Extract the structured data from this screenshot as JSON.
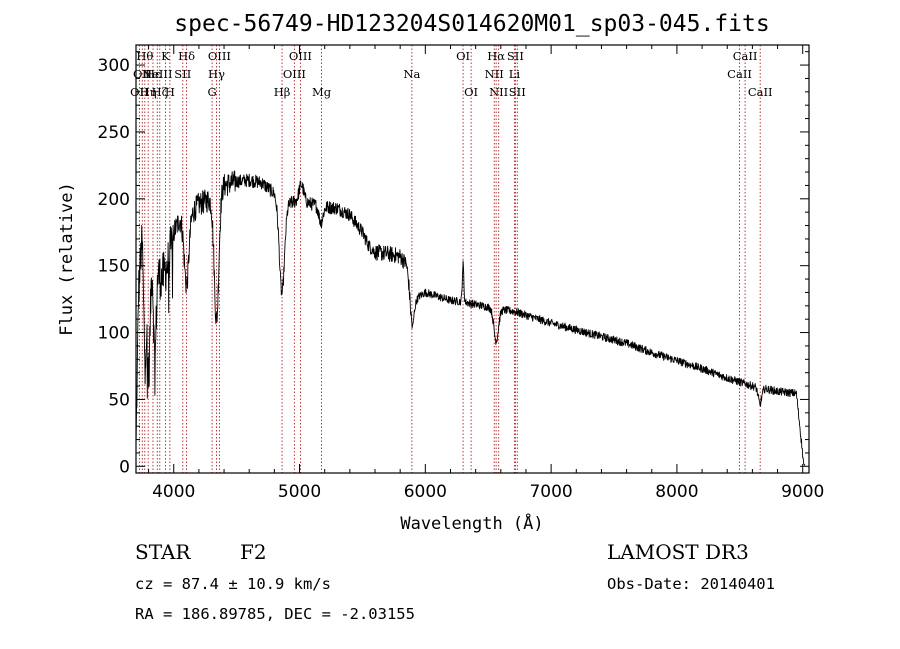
{
  "chart_data": {
    "type": "line",
    "title": "spec-56749-HD123204S014620M01_sp03-045.fits",
    "xlabel": "Wavelength (Å)",
    "ylabel": "Flux (relative)",
    "xlim": [
      3700,
      9050
    ],
    "ylim": [
      -5,
      315
    ],
    "xticks": [
      {
        "value": 4000,
        "label": "4000"
      },
      {
        "value": 5000,
        "label": "5000"
      },
      {
        "value": 6000,
        "label": "6000"
      },
      {
        "value": 7000,
        "label": "7000"
      },
      {
        "value": 8000,
        "label": "8000"
      },
      {
        "value": 9000,
        "label": "9000"
      }
    ],
    "yticks": [
      {
        "value": 0,
        "label": "0"
      },
      {
        "value": 50,
        "label": "50"
      },
      {
        "value": 100,
        "label": "100"
      },
      {
        "value": 150,
        "label": "150"
      },
      {
        "value": 200,
        "label": "200"
      },
      {
        "value": 250,
        "label": "250"
      },
      {
        "value": 300,
        "label": "300"
      }
    ],
    "spectrum_anchors": [
      [
        3700,
        10
      ],
      [
        3720,
        130
      ],
      [
        3750,
        175
      ],
      [
        3800,
        160
      ],
      [
        3850,
        150
      ],
      [
        3900,
        140
      ],
      [
        3950,
        150
      ],
      [
        4000,
        175
      ],
      [
        4050,
        185
      ],
      [
        4100,
        180
      ],
      [
        4150,
        190
      ],
      [
        4200,
        196
      ],
      [
        4300,
        200
      ],
      [
        4400,
        210
      ],
      [
        4500,
        213
      ],
      [
        4600,
        214
      ],
      [
        4700,
        212
      ],
      [
        4800,
        204
      ],
      [
        4850,
        190
      ],
      [
        4900,
        196
      ],
      [
        5000,
        199
      ],
      [
        5100,
        196
      ],
      [
        5200,
        194
      ],
      [
        5300,
        193
      ],
      [
        5400,
        188
      ],
      [
        5500,
        175
      ],
      [
        5550,
        165
      ],
      [
        5600,
        160
      ],
      [
        5700,
        159
      ],
      [
        5800,
        157
      ],
      [
        5850,
        151
      ],
      [
        5880,
        133
      ],
      [
        5900,
        120
      ],
      [
        5950,
        127
      ],
      [
        6000,
        130
      ],
      [
        6100,
        127
      ],
      [
        6200,
        124
      ],
      [
        6300,
        123
      ],
      [
        6400,
        121
      ],
      [
        6500,
        119
      ],
      [
        6600,
        117
      ],
      [
        6700,
        116
      ],
      [
        6800,
        113
      ],
      [
        7000,
        107
      ],
      [
        7200,
        102
      ],
      [
        7400,
        97
      ],
      [
        7600,
        92
      ],
      [
        7800,
        85
      ],
      [
        8000,
        79
      ],
      [
        8200,
        73
      ],
      [
        8400,
        66
      ],
      [
        8600,
        60
      ],
      [
        8800,
        56
      ],
      [
        9000,
        54
      ]
    ],
    "spectrum_features": [
      {
        "center": 4102,
        "width": 18,
        "depth": 45
      },
      {
        "center": 4340,
        "width": 18,
        "depth": 95
      },
      {
        "center": 4861,
        "width": 20,
        "depth": 62
      },
      {
        "center": 5015,
        "width": 18,
        "depth": -12
      },
      {
        "center": 5170,
        "width": 16,
        "depth": 12
      },
      {
        "center": 5893,
        "width": 14,
        "depth": 18
      },
      {
        "center": 6300,
        "width": 6,
        "depth": -28
      },
      {
        "center": 6563,
        "width": 18,
        "depth": 24
      },
      {
        "center": 8660,
        "width": 14,
        "depth": 12
      },
      {
        "center": 3850,
        "width": 10,
        "depth": 70
      },
      {
        "center": 3800,
        "width": 12,
        "depth": 90
      },
      {
        "center": 3770,
        "width": 10,
        "depth": 80
      }
    ],
    "spectral_lines": [
      {
        "wave": 3727,
        "label": "OII",
        "row": 2
      },
      {
        "wave": 3750,
        "label": "OII",
        "row": 1
      },
      {
        "wave": 3770,
        "label": "Hθ",
        "row": 0
      },
      {
        "wave": 3797,
        "label": "Hη",
        "row": 2
      },
      {
        "wave": 3835,
        "label": "Hε",
        "row": 1
      },
      {
        "wave": 3869,
        "label": "NeIII",
        "row": 1
      },
      {
        "wave": 3889,
        "label": "Hζ",
        "row": 2
      },
      {
        "wave": 3934,
        "label": "K",
        "row": 0
      },
      {
        "wave": 3969,
        "label": "H",
        "row": 2
      },
      {
        "wave": 4072,
        "label": "SII",
        "row": 1
      },
      {
        "wave": 4102,
        "label": "Hδ",
        "row": 0
      },
      {
        "wave": 4305,
        "label": "G",
        "row": 2
      },
      {
        "wave": 4340,
        "label": "Hγ",
        "row": 1
      },
      {
        "wave": 4363,
        "label": "OIII",
        "row": 0
      },
      {
        "wave": 4861,
        "label": "Hβ",
        "row": 2
      },
      {
        "wave": 4959,
        "label": "OIII",
        "row": 1
      },
      {
        "wave": 5007,
        "label": "OIII",
        "row": 0
      },
      {
        "wave": 5175,
        "label": "Mg",
        "row": 2
      },
      {
        "wave": 5893,
        "label": "Na",
        "row": 1
      },
      {
        "wave": 6300,
        "label": "OI",
        "row": 0
      },
      {
        "wave": 6364,
        "label": "OI",
        "row": 2
      },
      {
        "wave": 6548,
        "label": "NII",
        "row": 1
      },
      {
        "wave": 6563,
        "label": "Hα",
        "row": 0
      },
      {
        "wave": 6583,
        "label": "NII",
        "row": 2
      },
      {
        "wave": 6708,
        "label": "Li",
        "row": 1
      },
      {
        "wave": 6716,
        "label": "SII",
        "row": 0
      },
      {
        "wave": 6731,
        "label": "SII",
        "row": 2
      },
      {
        "wave": 8498,
        "label": "CaII",
        "row": 1
      },
      {
        "wave": 8542,
        "label": "CaII",
        "row": 0
      },
      {
        "wave": 8662,
        "label": "CaII",
        "row": 2
      }
    ]
  },
  "info": {
    "object_type": "STAR",
    "subclass": "F2",
    "survey": "LAMOST DR3",
    "cz": "cz = 87.4 ± 10.9 km/s",
    "obs_date": "Obs-Date: 20140401",
    "coords": "RA = 186.89785, DEC =  -2.03155"
  },
  "colors": {
    "spectrum": "#000000",
    "line_marker": "#b22222",
    "axis": "#000000"
  }
}
